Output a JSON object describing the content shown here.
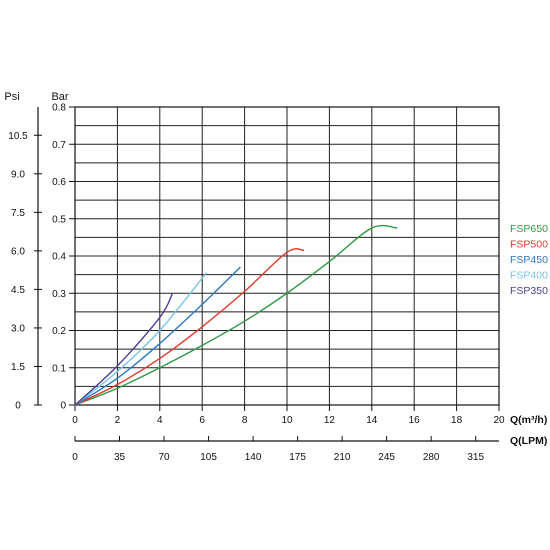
{
  "chart_data": {
    "type": "line",
    "axes": {
      "psi": {
        "label": "Psi",
        "ticks": [
          "10.5",
          "9.0",
          "7.5",
          "6.0",
          "4.5",
          "3.0",
          "1.5",
          "0"
        ],
        "tick_values": [
          10.5,
          9.0,
          7.5,
          6.0,
          4.5,
          3.0,
          1.5,
          0
        ]
      },
      "bar": {
        "label": "Bar",
        "ticks": [
          "0.8",
          "0.7",
          "0.6",
          "0.5",
          "0.4",
          "0.3",
          "0.2",
          "0.1",
          "0"
        ],
        "tick_values": [
          0.8,
          0.7,
          0.6,
          0.5,
          0.4,
          0.3,
          0.2,
          0.1,
          0
        ],
        "ylim": [
          0,
          0.8
        ]
      },
      "x_m3h": {
        "label": "Q(m³/h)",
        "ticks": [
          "0",
          "2",
          "4",
          "6",
          "8",
          "10",
          "12",
          "14",
          "16",
          "18",
          "20"
        ],
        "tick_values": [
          0,
          2,
          4,
          6,
          8,
          10,
          12,
          14,
          16,
          18,
          20
        ],
        "xlim": [
          0,
          20
        ]
      },
      "x_lpm": {
        "label": "Q(LPM)",
        "ticks": [
          "0",
          "35",
          "70",
          "105",
          "140",
          "175",
          "210",
          "245",
          "280",
          "315"
        ],
        "tick_values": [
          0,
          35,
          70,
          105,
          140,
          175,
          210,
          245,
          280,
          315
        ]
      }
    },
    "grid": true,
    "legend_position": "right",
    "series": [
      {
        "name": "FSP650",
        "color": "#2e9a43",
        "x": [
          0,
          2,
          4,
          6,
          8,
          10,
          12,
          14,
          15.2
        ],
        "y": [
          0,
          0.045,
          0.1,
          0.16,
          0.225,
          0.3,
          0.385,
          0.475,
          0.475
        ]
      },
      {
        "name": "FSP500",
        "color": "#e03a2a",
        "x": [
          0,
          2,
          4,
          6,
          8,
          10,
          10.8
        ],
        "y": [
          0,
          0.055,
          0.125,
          0.21,
          0.305,
          0.41,
          0.415
        ]
      },
      {
        "name": "FSP450",
        "color": "#2b78c2",
        "x": [
          0,
          2,
          4,
          6,
          7.8
        ],
        "y": [
          0,
          0.072,
          0.165,
          0.27,
          0.37
        ]
      },
      {
        "name": "FSP400",
        "color": "#7cc4e8",
        "x": [
          0,
          2,
          4,
          6.2
        ],
        "y": [
          0,
          0.09,
          0.2,
          0.355
        ]
      },
      {
        "name": "FSP350",
        "color": "#4a3f95",
        "x": [
          0,
          2,
          4,
          4.6
        ],
        "y": [
          0,
          0.105,
          0.235,
          0.3
        ]
      }
    ]
  }
}
